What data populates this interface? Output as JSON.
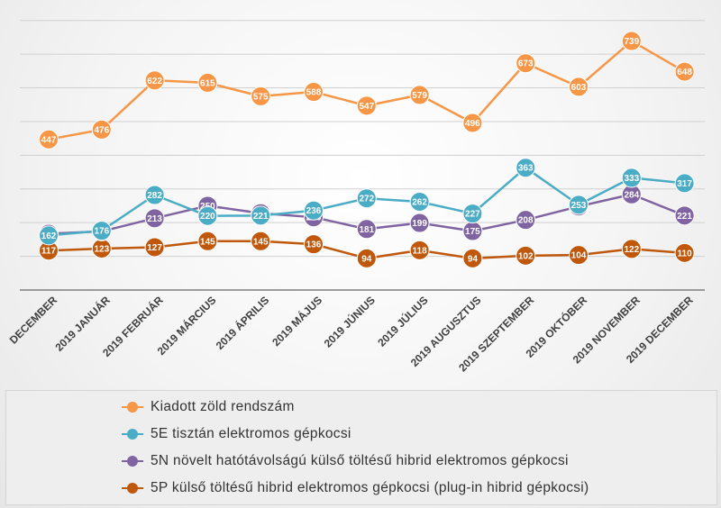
{
  "chart_data": {
    "type": "line",
    "categories": [
      "DECEMBER",
      "2019 JANUÁR",
      "2019 FEBRUÁR",
      "2019 MÁRCIUS",
      "2019 ÁPRILIS",
      "2019 MÁJUS",
      "2019 JÚNIUS",
      "2019 JÚLIUS",
      "2019 AUGUSZTUS",
      "2019 SZEPTEMBER",
      "2019 OKTÓBER",
      "2019 NOVEMBER",
      "2019 DECEMBER"
    ],
    "ylim": [
      0,
      850
    ],
    "grid": true,
    "legend_position": "bottom",
    "series": [
      {
        "name": "Kiadott zöld rendszám",
        "color": "#F79646",
        "values": [
          447,
          476,
          622,
          615,
          575,
          588,
          547,
          579,
          496,
          673,
          603,
          739,
          648
        ]
      },
      {
        "name": "5E tisztán elektromos gépkocsi",
        "color": "#4BACC6",
        "values": [
          162,
          176,
          282,
          220,
          221,
          236,
          272,
          262,
          227,
          363,
          253,
          333,
          317
        ]
      },
      {
        "name": "5N növelt hatótávolságú külső töltésű hibrid elektromos gépkocsi",
        "color": "#8064A2",
        "values": [
          167,
          174,
          213,
          250,
          228,
          216,
          181,
          199,
          175,
          208,
          248,
          284,
          221
        ]
      },
      {
        "name": "5P külső töltésű hibrid elektromos gépkocsi (plug-in hibrid gépkocsi)",
        "color": "#C0580C",
        "values": [
          117,
          123,
          127,
          145,
          145,
          136,
          94,
          118,
          94,
          102,
          104,
          122,
          110
        ]
      }
    ]
  }
}
